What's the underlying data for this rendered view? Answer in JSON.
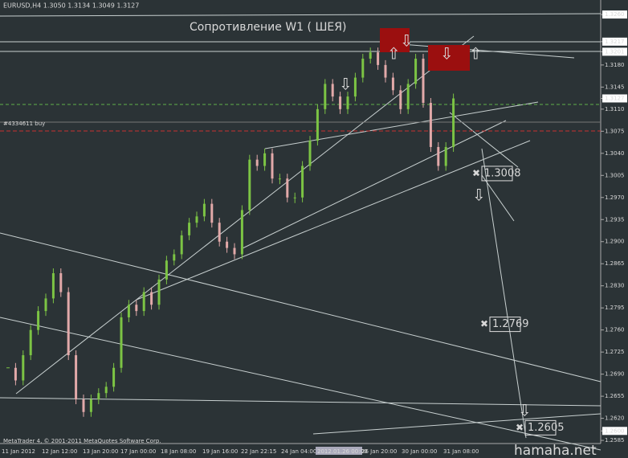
{
  "chart_data": {
    "type": "candlestick",
    "header": "EURUSD,H4  1.3050 1.3134 1.3049 1.3127",
    "title": "Сопротивление  W1 ( ШЕЯ)",
    "order_label": "#4334611 buy",
    "footer": "MetaTrader 4, © 2001-2011 MetaQuotes Software Corp.",
    "watermark": "hamaha.net",
    "up_color": "#7cc444",
    "down_color": "#e2a9a9",
    "ylim": [
      1.258,
      1.3283
    ],
    "close": [
      1.27,
      1.268,
      1.272,
      1.276,
      1.279,
      1.281,
      1.285,
      1.282,
      1.272,
      1.265,
      1.263,
      1.265,
      1.266,
      1.267,
      1.27,
      1.278,
      1.28,
      1.279,
      1.282,
      1.28,
      1.284,
      1.287,
      1.288,
      1.291,
      1.293,
      1.294,
      1.296,
      1.293,
      1.29,
      1.289,
      1.288,
      1.295,
      1.303,
      1.302,
      1.304,
      1.3,
      1.3,
      1.297,
      1.297,
      1.302,
      1.306,
      1.311,
      1.315,
      1.313,
      1.311,
      1.313,
      1.316,
      1.319,
      1.32,
      1.318,
      1.316,
      1.314,
      1.311,
      1.315,
      1.319,
      1.312,
      1.305,
      1.302,
      1.305,
      1.3127
    ],
    "yticks": [
      {
        "value": 1.326,
        "label": "1.3260",
        "boxed": true
      },
      {
        "value": 1.3217,
        "label": "1.3217",
        "boxed": true
      },
      {
        "value": 1.3201,
        "label": "1.3201",
        "boxed": true
      },
      {
        "value": 1.318,
        "label": "1.3180"
      },
      {
        "value": 1.3145,
        "label": "1.3145"
      },
      {
        "value": 1.3127,
        "label": "1.3127",
        "boxed": true
      },
      {
        "value": 1.311,
        "label": "1.3110"
      },
      {
        "value": 1.3075,
        "label": "1.3075"
      },
      {
        "value": 1.304,
        "label": "1.3040"
      },
      {
        "value": 1.3005,
        "label": "1.3005"
      },
      {
        "value": 1.297,
        "label": "1.2970"
      },
      {
        "value": 1.2935,
        "label": "1.2935"
      },
      {
        "value": 1.29,
        "label": "1.2900"
      },
      {
        "value": 1.2865,
        "label": "1.2865"
      },
      {
        "value": 1.283,
        "label": "1.2830"
      },
      {
        "value": 1.2795,
        "label": "1.2795"
      },
      {
        "value": 1.276,
        "label": "1.2760"
      },
      {
        "value": 1.2725,
        "label": "1.2725"
      },
      {
        "value": 1.269,
        "label": "1.2690"
      },
      {
        "value": 1.2655,
        "label": "1.2655"
      },
      {
        "value": 1.262,
        "label": "1.2620"
      },
      {
        "value": 1.26,
        "label": "1.2600",
        "boxed": true
      },
      {
        "value": 1.2585,
        "label": "1.2585"
      }
    ],
    "xlabels": [
      {
        "label": "11 Jan 2012"
      },
      {
        "label": "12 Jan 12:00"
      },
      {
        "label": "13 Jan 20:00"
      },
      {
        "label": "17 Jan 00:00"
      },
      {
        "label": "18 Jan 08:00"
      },
      {
        "label": "19 Jan 16:00"
      },
      {
        "label": "22 Jan 22:15"
      },
      {
        "label": "24 Jan 04:00"
      },
      {
        "label": "2012.01.26 00:00",
        "boxed": true
      },
      {
        "label": "26 Jan 20:00"
      },
      {
        "label": "30 Jan 00:00"
      },
      {
        "label": "31 Jan 08:00"
      }
    ],
    "targets": [
      {
        "value": 1.3008,
        "label": "1.3008"
      },
      {
        "value": 1.2769,
        "label": "1.2769"
      },
      {
        "value": 1.2605,
        "label": "1.2605"
      }
    ]
  }
}
